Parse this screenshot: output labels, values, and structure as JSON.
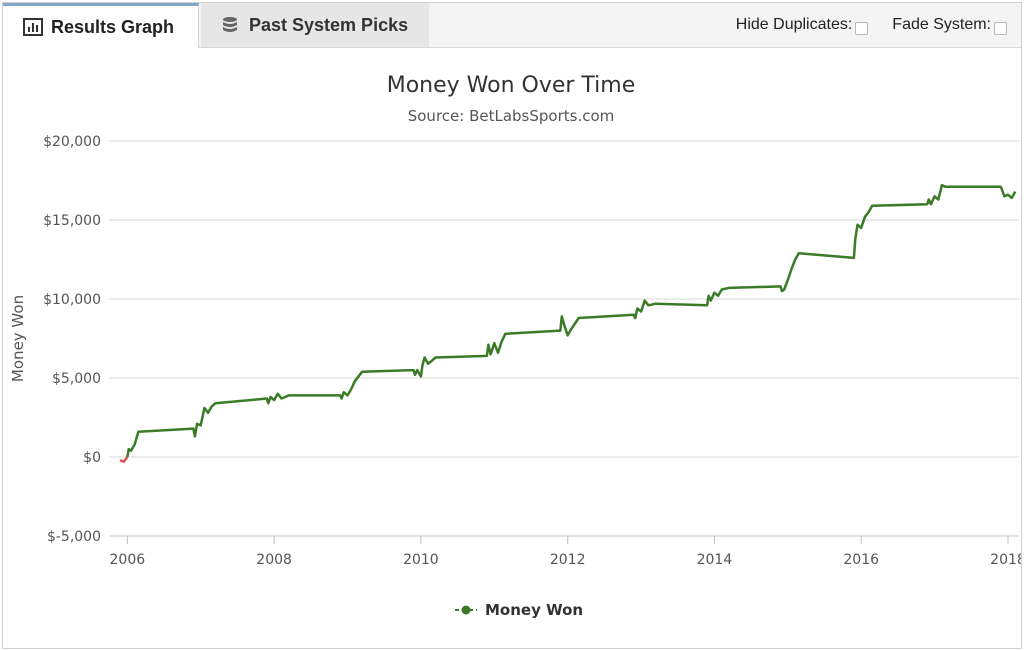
{
  "tabs": [
    {
      "label": "Results Graph",
      "active": true,
      "icon": "bar-chart-icon"
    },
    {
      "label": "Past System Picks",
      "active": false,
      "icon": "database-icon"
    }
  ],
  "toggles": {
    "hide_duplicates": {
      "label": "Hide Duplicates:",
      "checked": false
    },
    "fade_system": {
      "label": "Fade System:",
      "checked": false
    }
  },
  "colors": {
    "line_positive": "#3a7b27",
    "line_negative": "#d9534f",
    "accent_tab": "#7fa7c9"
  },
  "chart_data": {
    "type": "line",
    "title": "Money Won Over Time",
    "subtitle": "Source: BetLabsSports.com",
    "ylabel": "Money Won",
    "xlabel": "",
    "ylim": [
      -5000,
      20000
    ],
    "xlim": [
      2005.75,
      2018.15
    ],
    "yticks": [
      20000,
      15000,
      10000,
      5000,
      0,
      -5000
    ],
    "ytick_labels": [
      "$20,000",
      "$15,000",
      "$10,000",
      "$5,000",
      "$0",
      "$-5,000"
    ],
    "xticks": [
      2006,
      2008,
      2010,
      2012,
      2014,
      2016,
      2018
    ],
    "xtick_labels": [
      "2006",
      "2008",
      "2010",
      "2012",
      "2014",
      "2016",
      "2018"
    ],
    "grid": true,
    "legend": {
      "position": "bottom-center",
      "entries": [
        "Money Won"
      ]
    },
    "series": [
      {
        "name": "Money Won",
        "x": [
          2005.9,
          2005.95,
          2006.0,
          2006.02,
          2006.05,
          2006.1,
          2006.15,
          2006.9,
          2006.92,
          2006.95,
          2007.0,
          2007.05,
          2007.1,
          2007.15,
          2007.2,
          2007.9,
          2007.92,
          2007.95,
          2008.0,
          2008.05,
          2008.1,
          2008.15,
          2008.2,
          2008.9,
          2008.92,
          2008.95,
          2009.0,
          2009.05,
          2009.1,
          2009.2,
          2009.9,
          2009.92,
          2009.95,
          2010.0,
          2010.02,
          2010.05,
          2010.1,
          2010.2,
          2010.9,
          2010.92,
          2010.95,
          2011.0,
          2011.05,
          2011.1,
          2011.15,
          2011.9,
          2011.92,
          2011.95,
          2012.0,
          2012.05,
          2012.15,
          2012.9,
          2012.92,
          2012.95,
          2013.0,
          2013.05,
          2013.1,
          2013.2,
          2013.9,
          2013.92,
          2013.95,
          2014.0,
          2014.05,
          2014.1,
          2014.2,
          2014.9,
          2014.92,
          2014.95,
          2015.0,
          2015.05,
          2015.1,
          2015.15,
          2015.9,
          2015.92,
          2015.95,
          2016.0,
          2016.05,
          2016.1,
          2016.15,
          2016.9,
          2016.92,
          2016.95,
          2017.0,
          2017.05,
          2017.1,
          2017.15,
          2017.9,
          2017.92,
          2017.95,
          2018.0,
          2018.05,
          2018.1
        ],
        "y": [
          -200,
          -300,
          0,
          500,
          400,
          800,
          1600,
          1800,
          1300,
          2100,
          2000,
          3100,
          2800,
          3200,
          3400,
          3700,
          3400,
          3800,
          3600,
          4000,
          3700,
          3800,
          3900,
          3900,
          3700,
          4100,
          3900,
          4300,
          4800,
          5400,
          5500,
          5200,
          5500,
          5100,
          5800,
          6300,
          5900,
          6300,
          6400,
          7100,
          6500,
          7200,
          6600,
          7300,
          7800,
          8000,
          8900,
          8400,
          7700,
          8100,
          8800,
          9000,
          8800,
          9400,
          9200,
          9900,
          9600,
          9700,
          9600,
          10200,
          9900,
          10400,
          10200,
          10600,
          10700,
          10800,
          10500,
          10600,
          11200,
          11900,
          12500,
          12900,
          12600,
          13800,
          14700,
          14500,
          15200,
          15500,
          15900,
          16000,
          16300,
          16000,
          16500,
          16300,
          17200,
          17100,
          17100,
          16900,
          16500,
          16600,
          16400,
          16800
        ],
        "negative_until_x": 2006.0
      }
    ]
  }
}
